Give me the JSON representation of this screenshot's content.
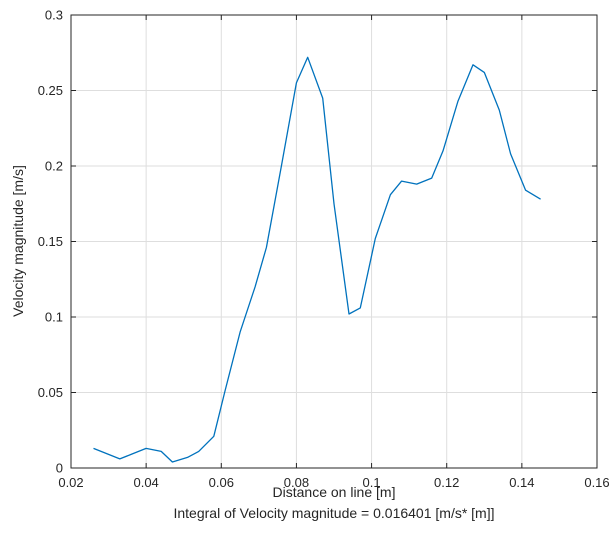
{
  "chart_data": {
    "type": "line",
    "title": "",
    "xlabel": "Distance on line [m]",
    "ylabel": "Velocity magnitude [m/s]",
    "caption": "Integral of Velocity magnitude  = 0.016401 [m/s* [m]]",
    "xlim": [
      0.02,
      0.16
    ],
    "ylim": [
      0,
      0.3
    ],
    "grid": true,
    "x_ticks": [
      0.02,
      0.04,
      0.06,
      0.08,
      0.1,
      0.12,
      0.14,
      0.16
    ],
    "x_tick_labels": [
      "0.02",
      "0.04",
      "0.06",
      "0.08",
      "0.1",
      "0.12",
      "0.14",
      "0.16"
    ],
    "y_ticks": [
      0,
      0.05,
      0.1,
      0.15,
      0.2,
      0.25,
      0.3
    ],
    "y_tick_labels": [
      "0",
      "0.05",
      "0.1",
      "0.15",
      "0.2",
      "0.25",
      "0.3"
    ],
    "line_color": "#0072bd",
    "grid_color": "#dedede",
    "axis_color": "#262626",
    "series": [
      {
        "x": [
          0.026,
          0.029,
          0.033,
          0.036,
          0.04,
          0.044,
          0.047,
          0.051,
          0.054,
          0.058,
          0.061,
          0.065,
          0.069,
          0.072,
          0.076,
          0.08,
          0.083,
          0.087,
          0.09,
          0.094,
          0.097,
          0.101,
          0.105,
          0.108,
          0.112,
          0.116,
          0.119,
          0.123,
          0.127,
          0.13,
          0.134,
          0.137,
          0.141,
          0.145
        ],
        "y": [
          0.013,
          0.01,
          0.006,
          0.009,
          0.013,
          0.011,
          0.004,
          0.007,
          0.011,
          0.021,
          0.051,
          0.09,
          0.12,
          0.146,
          0.2,
          0.255,
          0.272,
          0.245,
          0.175,
          0.102,
          0.106,
          0.152,
          0.181,
          0.19,
          0.188,
          0.192,
          0.21,
          0.243,
          0.267,
          0.262,
          0.237,
          0.208,
          0.184,
          0.178
        ]
      }
    ]
  }
}
